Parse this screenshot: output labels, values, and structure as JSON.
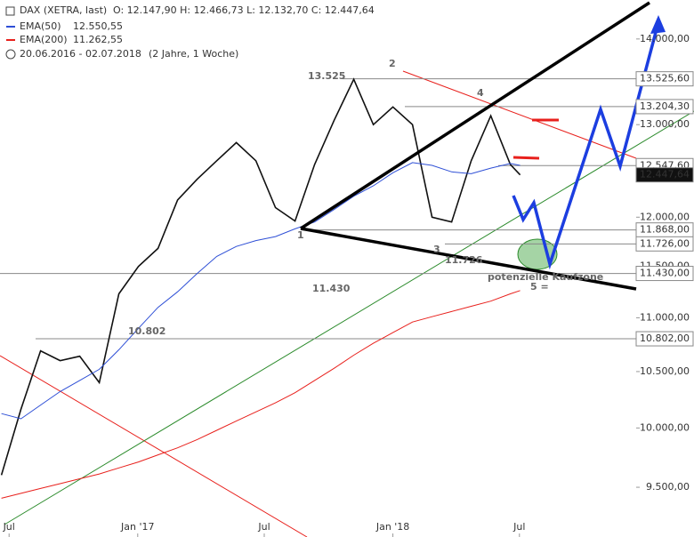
{
  "chart_data": {
    "type": "line",
    "log_scale": true,
    "header": {
      "instrument": "DAX (XETRA, last)",
      "ohlc": "O: 12.147,90  H: 12.466,73  L: 12.132,70  C: 12.447,64",
      "ema50_label": "EMA(50)",
      "ema50_last": "12.550,55",
      "ema200_label": "EMA(200)",
      "ema200_last": "11.262,55",
      "period": "20.06.2016 - 02.07.2018",
      "span": "(2 Jahre, 1 Woche)"
    },
    "x": [
      "2016-06-20",
      "2016-07-18",
      "2016-08-15",
      "2016-09-12",
      "2016-10-10",
      "2016-11-07",
      "2016-12-05",
      "2017-01-02",
      "2017-01-30",
      "2017-02-27",
      "2017-03-27",
      "2017-04-24",
      "2017-05-22",
      "2017-06-19",
      "2017-07-17",
      "2017-08-14",
      "2017-09-11",
      "2017-10-09",
      "2017-11-06",
      "2017-12-04",
      "2018-01-01",
      "2018-01-29",
      "2018-02-26",
      "2018-03-26",
      "2018-04-23",
      "2018-05-21",
      "2018-06-18",
      "2018-07-02"
    ],
    "series": [
      {
        "name": "DAX",
        "color": "#111111",
        "values": [
          9600,
          10165,
          10690,
          10600,
          10640,
          10400,
          11230,
          11500,
          11680,
          12180,
          12400,
          12600,
          12800,
          12600,
          12100,
          11960,
          12560,
          13050,
          13520,
          13000,
          13200,
          13000,
          12000,
          11950,
          12600,
          13100,
          12560,
          12447.64
        ]
      },
      {
        "name": "EMA(50)",
        "color": "#2e4fd6",
        "values": [
          10125,
          10080,
          10200,
          10320,
          10420,
          10520,
          10700,
          10900,
          11100,
          11250,
          11430,
          11600,
          11700,
          11760,
          11800,
          11880,
          11950,
          12080,
          12220,
          12330,
          12470,
          12580,
          12550,
          12480,
          12460,
          12520,
          12570,
          12550.55
        ]
      },
      {
        "name": "EMA(200)",
        "color": "#e8201c",
        "values": [
          9410,
          9450,
          9490,
          9530,
          9570,
          9610,
          9660,
          9710,
          9770,
          9830,
          9900,
          9980,
          10060,
          10140,
          10220,
          10310,
          10420,
          10530,
          10650,
          10760,
          10860,
          10960,
          11010,
          11060,
          11110,
          11160,
          11230,
          11262.55
        ]
      }
    ],
    "xlim": [
      "2016-06-18",
      "2018-12-15"
    ],
    "xticks": [
      {
        "value": "2016-07-01",
        "label": "Jul"
      },
      {
        "value": "2017-01-01",
        "label": "Jan '17"
      },
      {
        "value": "2017-07-01",
        "label": "Jul"
      },
      {
        "value": "2018-01-01",
        "label": "Jan '18"
      },
      {
        "value": "2018-07-01",
        "label": "Jul"
      }
    ],
    "ylim": [
      9100,
      14480
    ],
    "yticks": [
      {
        "value": 9500,
        "label": "9.500,00"
      },
      {
        "value": 10000,
        "label": "10.000,00"
      },
      {
        "value": 10500,
        "label": "10.500,00"
      },
      {
        "value": 11000,
        "label": "11.000,00"
      },
      {
        "value": 11500,
        "label": "11.500,00"
      },
      {
        "value": 12000,
        "label": "12.000,00"
      },
      {
        "value": 13000,
        "label": "13.000,00"
      },
      {
        "value": 14000,
        "label": "14.000,00"
      }
    ],
    "levels": [
      {
        "value": 13525.6,
        "label": "13.525,60"
      },
      {
        "value": 13204.3,
        "label": "13.204,30"
      },
      {
        "value": 12547.6,
        "label": "12.547,60"
      },
      {
        "value": 12447.64,
        "label": "12.447,64"
      },
      {
        "value": 11868,
        "label": "11.868,00"
      },
      {
        "value": 11726,
        "label": "11.726,00"
      },
      {
        "value": 11430,
        "label": "11.430,00"
      },
      {
        "value": 10802,
        "label": "10.802,00"
      }
    ],
    "annotations": {
      "peak": "13.525",
      "p1": "1",
      "p2": "2",
      "p3": "3",
      "p4": "4",
      "low3": "11.726",
      "support": "11.430",
      "low2016": "10.802",
      "p5": "5 =",
      "zone": "potenzielle Kaufzone"
    }
  }
}
